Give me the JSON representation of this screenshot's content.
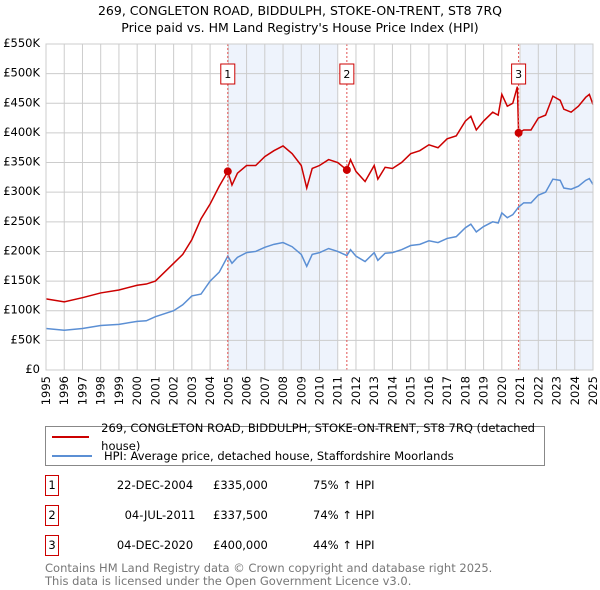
{
  "title": "269, CONGLETON ROAD, BIDDULPH, STOKE-ON-TRENT, ST8 7RQ",
  "subtitle": "Price paid vs. HM Land Registry's House Price Index (HPI)",
  "colors": {
    "property": "#cc0000",
    "hpi": "#5b8fd4",
    "shade": "#eef3fc"
  },
  "chart_data": {
    "type": "line",
    "title": "269, CONGLETON ROAD, BIDDULPH, STOKE-ON-TRENT, ST8 7RQ",
    "xlim": [
      1995,
      2025
    ],
    "ylim": [
      0,
      550000
    ],
    "yticks": [
      0,
      50000,
      100000,
      150000,
      200000,
      250000,
      300000,
      350000,
      400000,
      450000,
      500000,
      550000
    ],
    "ytick_labels": [
      "£0",
      "£50K",
      "£100K",
      "£150K",
      "£200K",
      "£250K",
      "£300K",
      "£350K",
      "£400K",
      "£450K",
      "£500K",
      "£550K"
    ],
    "xticks": [
      1995,
      1996,
      1997,
      1998,
      1999,
      2000,
      2001,
      2002,
      2003,
      2004,
      2005,
      2006,
      2007,
      2008,
      2009,
      2010,
      2011,
      2012,
      2013,
      2014,
      2015,
      2016,
      2017,
      2018,
      2019,
      2020,
      2021,
      2022,
      2023,
      2024,
      2025
    ],
    "grid": true,
    "shaded_ranges": [
      [
        2004.97,
        2011.0
      ],
      [
        2021.05,
        2025
      ]
    ],
    "series": [
      {
        "name": "269, CONGLETON ROAD, BIDDULPH, STOKE-ON-TRENT, ST8 7RQ (detached house)",
        "x": [
          1995,
          1996,
          1997,
          1998,
          1999,
          2000,
          2000.5,
          2001,
          2001.5,
          2002,
          2002.5,
          2003,
          2003.5,
          2004,
          2004.5,
          2004.97,
          2005.2,
          2005.5,
          2006,
          2006.5,
          2007,
          2007.5,
          2008,
          2008.5,
          2009,
          2009.3,
          2009.6,
          2010,
          2010.5,
          2011,
          2011.5,
          2011.7,
          2012,
          2012.5,
          2013,
          2013.2,
          2013.6,
          2014,
          2014.5,
          2015,
          2015.5,
          2016,
          2016.5,
          2017,
          2017.5,
          2018,
          2018.3,
          2018.6,
          2019,
          2019.5,
          2019.8,
          2020,
          2020.3,
          2020.6,
          2020.85,
          2020.92,
          2021.2,
          2021.6,
          2022,
          2022.4,
          2022.8,
          2023.2,
          2023.4,
          2023.8,
          2024.2,
          2024.6,
          2024.8,
          2025
        ],
        "y": [
          120000,
          115000,
          122000,
          130000,
          135000,
          143000,
          145000,
          150000,
          165000,
          180000,
          195000,
          220000,
          255000,
          280000,
          310000,
          335000,
          312000,
          332000,
          345000,
          345000,
          360000,
          370000,
          378000,
          365000,
          345000,
          307000,
          340000,
          345000,
          355000,
          350000,
          337500,
          355000,
          335000,
          318000,
          345000,
          322000,
          342000,
          340000,
          350000,
          365000,
          370000,
          380000,
          375000,
          390000,
          395000,
          420000,
          428000,
          405000,
          420000,
          435000,
          430000,
          465000,
          445000,
          450000,
          478000,
          400000,
          405000,
          405000,
          425000,
          430000,
          462000,
          455000,
          440000,
          435000,
          445000,
          460000,
          465000,
          448000
        ]
      },
      {
        "name": "HPI: Average price, detached house, Staffordshire Moorlands",
        "x": [
          1995,
          1996,
          1997,
          1998,
          1999,
          2000,
          2000.5,
          2001,
          2002,
          2002.5,
          2003,
          2003.5,
          2004,
          2004.5,
          2004.97,
          2005.2,
          2005.5,
          2006,
          2006.5,
          2007,
          2007.5,
          2008,
          2008.5,
          2009,
          2009.3,
          2009.6,
          2010,
          2010.5,
          2011,
          2011.5,
          2011.7,
          2012,
          2012.5,
          2013,
          2013.2,
          2013.6,
          2014,
          2014.5,
          2015,
          2015.5,
          2016,
          2016.5,
          2017,
          2017.5,
          2018,
          2018.3,
          2018.6,
          2019,
          2019.5,
          2019.8,
          2020,
          2020.3,
          2020.6,
          2020.92,
          2021.2,
          2021.6,
          2022,
          2022.4,
          2022.8,
          2023.2,
          2023.4,
          2023.8,
          2024.2,
          2024.6,
          2024.8,
          2025
        ],
        "y": [
          70000,
          67000,
          70000,
          75000,
          77000,
          82000,
          83000,
          90000,
          100000,
          110000,
          125000,
          128000,
          150000,
          165000,
          192000,
          180000,
          190000,
          198000,
          200000,
          207000,
          212000,
          215000,
          208000,
          195000,
          175000,
          195000,
          198000,
          205000,
          200000,
          193000,
          203000,
          192000,
          183000,
          198000,
          185000,
          197000,
          198000,
          203000,
          210000,
          212000,
          218000,
          215000,
          222000,
          225000,
          240000,
          246000,
          233000,
          242000,
          250000,
          248000,
          265000,
          257000,
          262000,
          275000,
          282000,
          282000,
          295000,
          300000,
          322000,
          320000,
          307000,
          305000,
          310000,
          320000,
          323000,
          313000
        ]
      }
    ],
    "sales": [
      {
        "label": "1",
        "x": 2004.97,
        "y": 335000
      },
      {
        "label": "2",
        "x": 2011.5,
        "y": 337500
      },
      {
        "label": "3",
        "x": 2020.92,
        "y": 400000
      }
    ]
  },
  "legend": {
    "property": "269, CONGLETON ROAD, BIDDULPH, STOKE-ON-TRENT, ST8 7RQ (detached house)",
    "hpi": "HPI: Average price, detached house, Staffordshire Moorlands"
  },
  "transactions": [
    {
      "num": "1",
      "date": "22-DEC-2004",
      "price": "£335,000",
      "hpi": "75% ↑ HPI"
    },
    {
      "num": "2",
      "date": "04-JUL-2011",
      "price": "£337,500",
      "hpi": "74% ↑ HPI"
    },
    {
      "num": "3",
      "date": "04-DEC-2020",
      "price": "£400,000",
      "hpi": "44% ↑ HPI"
    }
  ],
  "footer": {
    "line1": "Contains HM Land Registry data © Crown copyright and database right 2025.",
    "line2": "This data is licensed under the Open Government Licence v3.0."
  }
}
